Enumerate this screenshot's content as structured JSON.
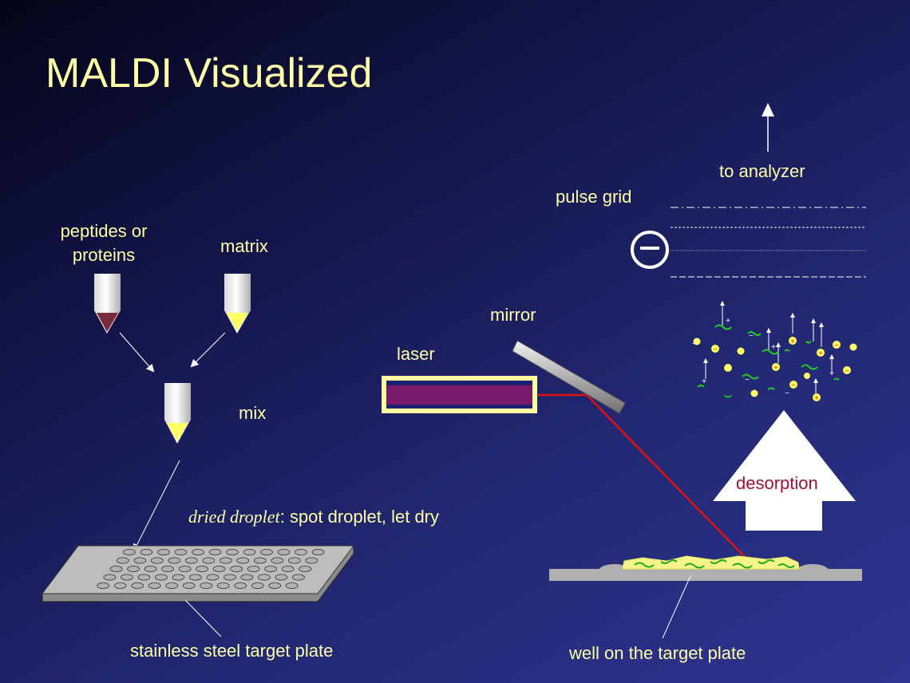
{
  "slide": {
    "title": "MALDI Visualized"
  },
  "labels": {
    "peptides": "peptides or\nproteins",
    "matrix": "matrix",
    "mix": "mix",
    "dried_droplet_term": "dried droplet",
    "dried_droplet_desc": ": spot droplet, let dry",
    "steel_plate": "stainless steel target plate",
    "laser": "laser",
    "mirror": "mirror",
    "pulse_grid": "pulse grid",
    "to_analyzer": "to analyzer",
    "desorption": "desorption",
    "well": "well on the target plate"
  },
  "colors": {
    "label_text": "#ffffa8",
    "laser_beam": "#e01010",
    "laser_body": "#7a1a6a",
    "laser_frame": "#ffffa0",
    "desorption_text": "#a01030",
    "ion_yellow": "#ffff66",
    "ion_orange": "#ff9900",
    "peptide_green": "#22cc22"
  },
  "icons": {
    "negative_grid": "minus-circle-icon",
    "analyzer_arrow": "arrow-up-icon"
  }
}
